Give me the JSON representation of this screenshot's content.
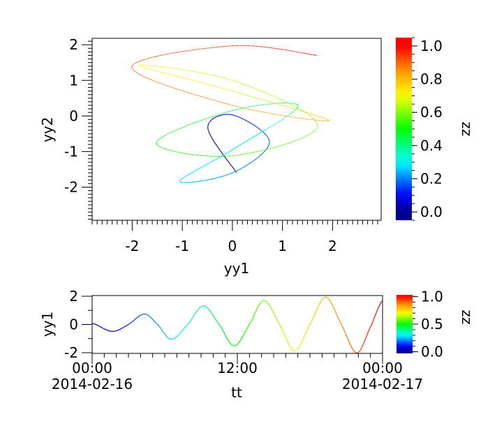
{
  "chart_data": [
    {
      "type": "scatter",
      "xlabel": "yy1",
      "ylabel": "yy2",
      "colorbar_label": "zz",
      "xlim": [
        -2.8,
        2.97
      ],
      "ylim": [
        -2.93,
        2.18
      ],
      "xticks": [
        "-2",
        "-1",
        "0",
        "1",
        "2"
      ],
      "yticks": [
        "-2",
        "-1",
        "0",
        "1",
        "2"
      ],
      "colorbar_range": [
        -0.05,
        1.05
      ],
      "colorbar_ticks": [
        "0.0",
        "0.2",
        "0.4",
        "0.6",
        "0.8",
        "1.0"
      ],
      "colormap": "rainbow",
      "grid": false
    },
    {
      "type": "line",
      "xlabel": "tt",
      "ylabel": "yy1",
      "colorbar_label": "zz",
      "xlim": [
        "2014-02-16T00:00",
        "2014-02-17T00:00"
      ],
      "ylim": [
        -2.05,
        2.05
      ],
      "xticks": [
        {
          "time": "00:00",
          "date": "2014-02-16"
        },
        {
          "time": "12:00",
          "date": ""
        },
        {
          "time": "00:00",
          "date": "2014-02-17"
        }
      ],
      "yticks": [
        "-2",
        "0",
        "2"
      ],
      "colorbar_range": [
        -0.03,
        1.03
      ],
      "colorbar_ticks": [
        "0.0",
        "0.5",
        "1.0"
      ],
      "colormap": "rainbow",
      "grid": false
    }
  ],
  "samples": {
    "tt": [
      "2014-02-16T00:00",
      "2014-02-16T01:40",
      "2014-02-16T03:00",
      "2014-02-16T04:19",
      "2014-02-16T05:24",
      "2014-02-16T06:32",
      "2014-02-16T07:54",
      "2014-02-16T09:12",
      "2014-02-16T10:30",
      "2014-02-16T11:45",
      "2014-02-16T13:00",
      "2014-02-16T14:12",
      "2014-02-16T15:30",
      "2014-02-16T16:44",
      "2014-02-16T18:00",
      "2014-02-16T19:18",
      "2014-02-16T20:36",
      "2014-02-16T21:53",
      "2014-02-16T23:06",
      "2014-02-17T00:00"
    ],
    "yy1": [
      0.08,
      -0.49,
      0.0,
      0.74,
      0.0,
      -1.05,
      0.0,
      1.31,
      0.0,
      -1.52,
      0.0,
      1.7,
      0.0,
      -1.87,
      0.0,
      1.93,
      0.0,
      -2.01,
      0.0,
      1.7
    ],
    "yy2": [
      -1.59,
      -0.34,
      0.03,
      -0.73,
      -1.6,
      -1.84,
      -0.95,
      0.28,
      0.15,
      -0.76,
      -1.12,
      -0.27,
      1.0,
      1.42,
      0.7,
      -0.13,
      0.3,
      1.37,
      1.97,
      1.7
    ],
    "zz_range": [
      0,
      1
    ]
  }
}
